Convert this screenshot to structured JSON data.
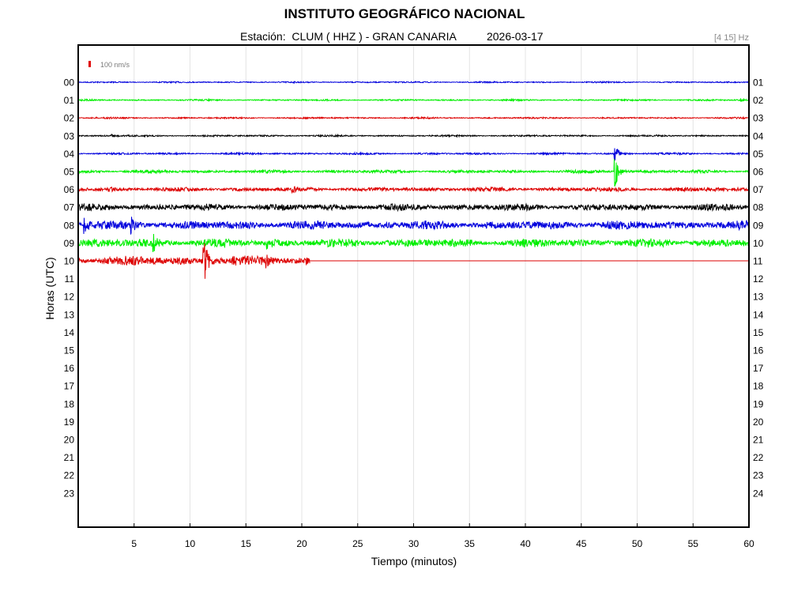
{
  "header": {
    "title": "INSTITUTO GEOGRÁFICO NACIONAL",
    "station_label": "Estación:",
    "station": "CLUM ( HHZ ) - GRAN CANARIA",
    "date": "2026-03-17",
    "filter": "[4 15] Hz"
  },
  "chart_data": {
    "type": "line",
    "subtype": "helicorder",
    "xlabel": "Tiempo (minutos)",
    "ylabel": "Horas (UTC)",
    "xlim": [
      0,
      60
    ],
    "x_ticks": [
      5,
      10,
      15,
      20,
      25,
      30,
      35,
      40,
      45,
      50,
      55,
      60
    ],
    "grid": "vertical",
    "scale_bar": {
      "label": "100 nm/s",
      "color": "#e00000"
    },
    "left_labels": [
      "00",
      "01",
      "02",
      "03",
      "04",
      "05",
      "06",
      "07",
      "08",
      "09",
      "10",
      "11",
      "12",
      "13",
      "14",
      "15",
      "16",
      "17",
      "18",
      "19",
      "20",
      "21",
      "22",
      "23"
    ],
    "right_labels": [
      "01",
      "02",
      "03",
      "04",
      "05",
      "06",
      "07",
      "08",
      "09",
      "10",
      "11",
      "12",
      "13",
      "14",
      "15",
      "16",
      "17",
      "18",
      "19",
      "20",
      "21",
      "22",
      "23",
      "24"
    ],
    "trace_colors": [
      "#0000dd",
      "#00ee00",
      "#dd0000",
      "#000000"
    ],
    "traces": [
      {
        "hour": "00",
        "noise": 0.7,
        "end": 60,
        "events": []
      },
      {
        "hour": "01",
        "noise": 0.8,
        "end": 60,
        "events": [
          {
            "minute": 59.2,
            "amp": 2
          }
        ]
      },
      {
        "hour": "02",
        "noise": 0.8,
        "end": 60,
        "events": []
      },
      {
        "hour": "03",
        "noise": 0.9,
        "end": 60,
        "events": [
          {
            "minute": 3,
            "amp": 1.5
          }
        ]
      },
      {
        "hour": "04",
        "noise": 1.0,
        "end": 60,
        "events": [
          {
            "minute": 48,
            "amp": 11
          }
        ]
      },
      {
        "hour": "05",
        "noise": 1.6,
        "end": 60,
        "events": [
          {
            "minute": 48,
            "amp": 22
          }
        ]
      },
      {
        "hour": "06",
        "noise": 2.2,
        "end": 60,
        "events": [
          {
            "minute": 2.8,
            "amp": 3
          },
          {
            "minute": 19,
            "amp": 3
          }
        ]
      },
      {
        "hour": "07",
        "noise": 3.5,
        "end": 60,
        "events": []
      },
      {
        "hour": "08",
        "noise": 4.5,
        "end": 60,
        "events": [
          {
            "minute": 0.5,
            "amp": 8
          },
          {
            "minute": 4.7,
            "amp": 9
          }
        ]
      },
      {
        "hour": "09",
        "noise": 4.3,
        "end": 60,
        "events": [
          {
            "minute": 6.7,
            "amp": 9
          },
          {
            "minute": 16.9,
            "amp": 11
          }
        ]
      },
      {
        "hour": "10",
        "noise": 5.0,
        "end": 20.7,
        "events": [
          {
            "minute": 11.2,
            "amp": 33
          },
          {
            "minute": 16.8,
            "amp": 6
          }
        ]
      }
    ]
  }
}
